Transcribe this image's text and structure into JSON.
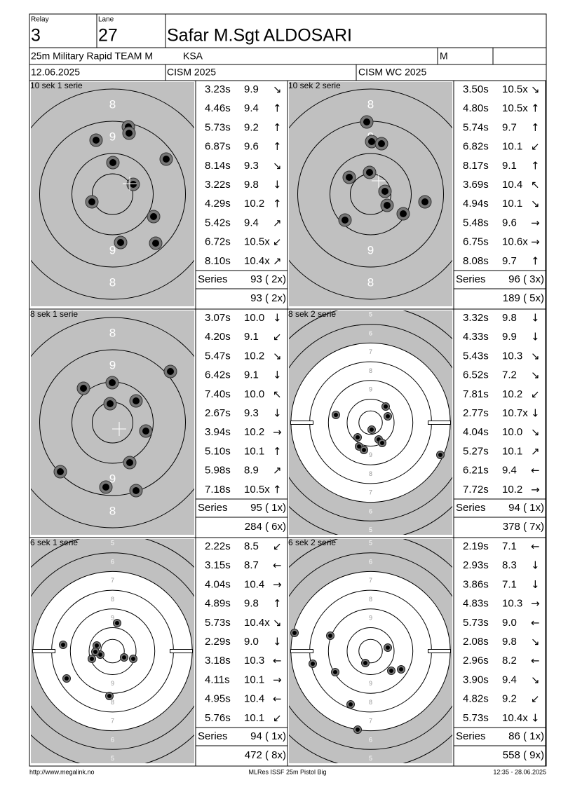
{
  "header": {
    "relay_label": "Relay",
    "relay": "3",
    "lane_label": "Lane",
    "lane": "27",
    "name": "Safar M.Sgt ALDOSARI",
    "event": "25m Military Rapid TEAM M",
    "country": "KSA",
    "gender": "M",
    "date": "12.06.2025",
    "competition": "CISM 2025",
    "match": "CISM WC 2025"
  },
  "panels": [
    {
      "title": "10 sek 1 serie",
      "ring_labels": [
        "8",
        "9"
      ],
      "shots": [
        [
          "3.23s",
          "9.9",
          "↘"
        ],
        [
          "4.46s",
          "9.4",
          "↑"
        ],
        [
          "5.73s",
          "9.2",
          "↑"
        ],
        [
          "6.87s",
          "9.6",
          "↑"
        ],
        [
          "8.14s",
          "9.3",
          "↘"
        ],
        [
          "3.22s",
          "9.8",
          "↓"
        ],
        [
          "4.29s",
          "10.2",
          "↑"
        ],
        [
          "5.42s",
          "9.4",
          "↗"
        ],
        [
          "6.72s",
          "10.5x",
          "↙"
        ],
        [
          "8.10s",
          "10.4x",
          "↗"
        ]
      ],
      "series_label": "Series",
      "series": "93 ( 2x)",
      "total": "93 ( 2x)"
    },
    {
      "title": "10 sek 2 serie",
      "ring_labels": [
        "8",
        "9"
      ],
      "shots": [
        [
          "3.50s",
          "10.5x",
          "↘"
        ],
        [
          "4.80s",
          "10.5x",
          "↑"
        ],
        [
          "5.74s",
          "9.7",
          "↑"
        ],
        [
          "6.82s",
          "10.1",
          "↙"
        ],
        [
          "8.17s",
          "9.1",
          "↑"
        ],
        [
          "3.69s",
          "10.4",
          "↖"
        ],
        [
          "4.94s",
          "10.1",
          "↘"
        ],
        [
          "5.48s",
          "9.6",
          "→"
        ],
        [
          "6.75s",
          "10.6x",
          "→"
        ],
        [
          "8.08s",
          "9.7",
          "↑"
        ]
      ],
      "series_label": "Series",
      "series": "96 ( 3x)",
      "total": "189 ( 5x)"
    },
    {
      "title": "8 sek 1 serie",
      "ring_labels": [
        "8",
        "9"
      ],
      "shots": [
        [
          "3.07s",
          "10.0",
          "↓"
        ],
        [
          "4.20s",
          "9.1",
          "↙"
        ],
        [
          "5.47s",
          "10.2",
          "↘"
        ],
        [
          "6.42s",
          "9.1",
          "↓"
        ],
        [
          "7.40s",
          "10.0",
          "↖"
        ],
        [
          "2.67s",
          "9.3",
          "↓"
        ],
        [
          "3.94s",
          "10.2",
          "→"
        ],
        [
          "5.10s",
          "10.1",
          "↑"
        ],
        [
          "5.98s",
          "8.9",
          "↗"
        ],
        [
          "7.18s",
          "10.5x",
          "↑"
        ]
      ],
      "series_label": "Series",
      "series": "95 ( 1x)",
      "total": "284 ( 6x)"
    },
    {
      "title": "8 sek 2 serie",
      "ring_labels": [
        "5",
        "6",
        "7",
        "8",
        "9"
      ],
      "shots": [
        [
          "3.32s",
          "9.8",
          "↓"
        ],
        [
          "4.33s",
          "9.9",
          "↓"
        ],
        [
          "5.43s",
          "10.3",
          "↘"
        ],
        [
          "6.52s",
          "7.2",
          "↘"
        ],
        [
          "7.81s",
          "10.2",
          "↙"
        ],
        [
          "2.77s",
          "10.7x",
          "↓"
        ],
        [
          "4.04s",
          "10.0",
          "↘"
        ],
        [
          "5.27s",
          "10.1",
          "↗"
        ],
        [
          "6.21s",
          "9.4",
          "←"
        ],
        [
          "7.72s",
          "10.2",
          "→"
        ]
      ],
      "series_label": "Series",
      "series": "94 ( 1x)",
      "total": "378 ( 7x)"
    },
    {
      "title": "6 sek 1 serie",
      "ring_labels": [
        "5",
        "6",
        "7",
        "8",
        "9"
      ],
      "shots": [
        [
          "2.22s",
          "8.5",
          "↙"
        ],
        [
          "3.15s",
          "8.7",
          "←"
        ],
        [
          "4.04s",
          "10.4",
          "→"
        ],
        [
          "4.89s",
          "9.8",
          "↑"
        ],
        [
          "5.73s",
          "10.4x",
          "↘"
        ],
        [
          "2.29s",
          "9.0",
          "↓"
        ],
        [
          "3.18s",
          "10.3",
          "←"
        ],
        [
          "4.11s",
          "10.1",
          "→"
        ],
        [
          "4.95s",
          "10.4",
          "←"
        ],
        [
          "5.76s",
          "10.1",
          "↙"
        ]
      ],
      "series_label": "Series",
      "series": "94 ( 1x)",
      "total": "472 ( 8x)"
    },
    {
      "title": "6 sek 2 serie",
      "ring_labels": [
        "5",
        "6",
        "7",
        "8",
        "9"
      ],
      "shots": [
        [
          "2.19s",
          "7.1",
          "←"
        ],
        [
          "2.93s",
          "8.3",
          "↓"
        ],
        [
          "3.86s",
          "7.1",
          "↓"
        ],
        [
          "4.83s",
          "10.3",
          "→"
        ],
        [
          "5.73s",
          "9.0",
          "←"
        ],
        [
          "2.08s",
          "9.8",
          "↘"
        ],
        [
          "2.96s",
          "8.2",
          "←"
        ],
        [
          "3.90s",
          "9.4",
          "↘"
        ],
        [
          "4.82s",
          "9.2",
          "↙"
        ],
        [
          "5.73s",
          "10.4x",
          "↓"
        ]
      ],
      "series_label": "Series",
      "series": "86 ( 1x)",
      "total": "558 ( 9x)"
    }
  ],
  "footer": {
    "left": "http://www.megalink.no",
    "center": "MLRes ISSF 25m Pistol Big",
    "right": "12:35 - 28.06.2025"
  }
}
